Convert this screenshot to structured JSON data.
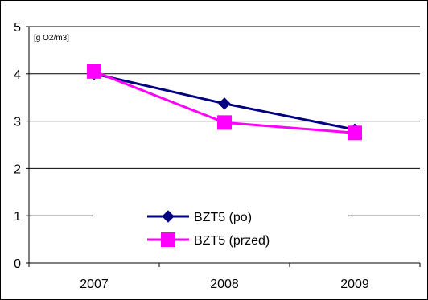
{
  "chart_data": {
    "type": "line",
    "categories": [
      "2007",
      "2008",
      "2009"
    ],
    "series": [
      {
        "name": "BZT5 (po)",
        "values": [
          4.0,
          3.37,
          2.82
        ],
        "color": "#000080",
        "marker": "diamond"
      },
      {
        "name": "BZT5 (przed)",
        "values": [
          4.05,
          2.97,
          2.75
        ],
        "color": "#ff00ff",
        "marker": "square"
      }
    ],
    "ylim": [
      0,
      5
    ],
    "yticks": [
      "0",
      "1",
      "2",
      "3",
      "4",
      "5"
    ],
    "unit_label": "[g O2/m3]",
    "grid": true,
    "legend_position": "bottom-center",
    "background": "#ffffff"
  }
}
